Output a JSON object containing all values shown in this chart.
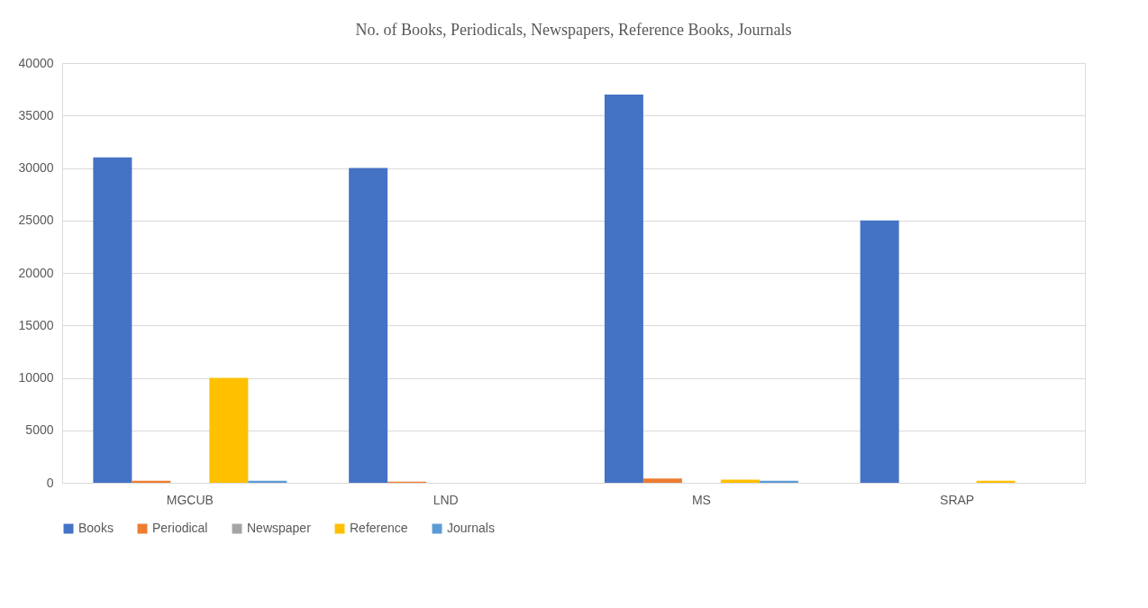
{
  "chart_data": {
    "type": "bar",
    "title": "No. of Books, Periodicals, Newspapers, Reference Books, Journals",
    "categories": [
      "MGCUB",
      "LND",
      "MS",
      "SRAP"
    ],
    "series": [
      {
        "name": "Books",
        "color": "#4472c4",
        "values": [
          31000,
          30000,
          37000,
          25000
        ]
      },
      {
        "name": "Periodical",
        "color": "#ed7d31",
        "values": [
          200,
          100,
          400,
          0
        ]
      },
      {
        "name": "Newspaper",
        "color": "#a5a5a5",
        "values": [
          0,
          0,
          0,
          0
        ]
      },
      {
        "name": "Reference",
        "color": "#ffc000",
        "values": [
          10000,
          0,
          300,
          200
        ]
      },
      {
        "name": "Journals",
        "color": "#5b9bd5",
        "values": [
          200,
          0,
          200,
          0
        ]
      }
    ],
    "ylim": [
      0,
      40000
    ],
    "yticks": [
      0,
      5000,
      10000,
      15000,
      20000,
      25000,
      30000,
      35000,
      40000
    ],
    "grid": "y",
    "legend": "bottom"
  }
}
